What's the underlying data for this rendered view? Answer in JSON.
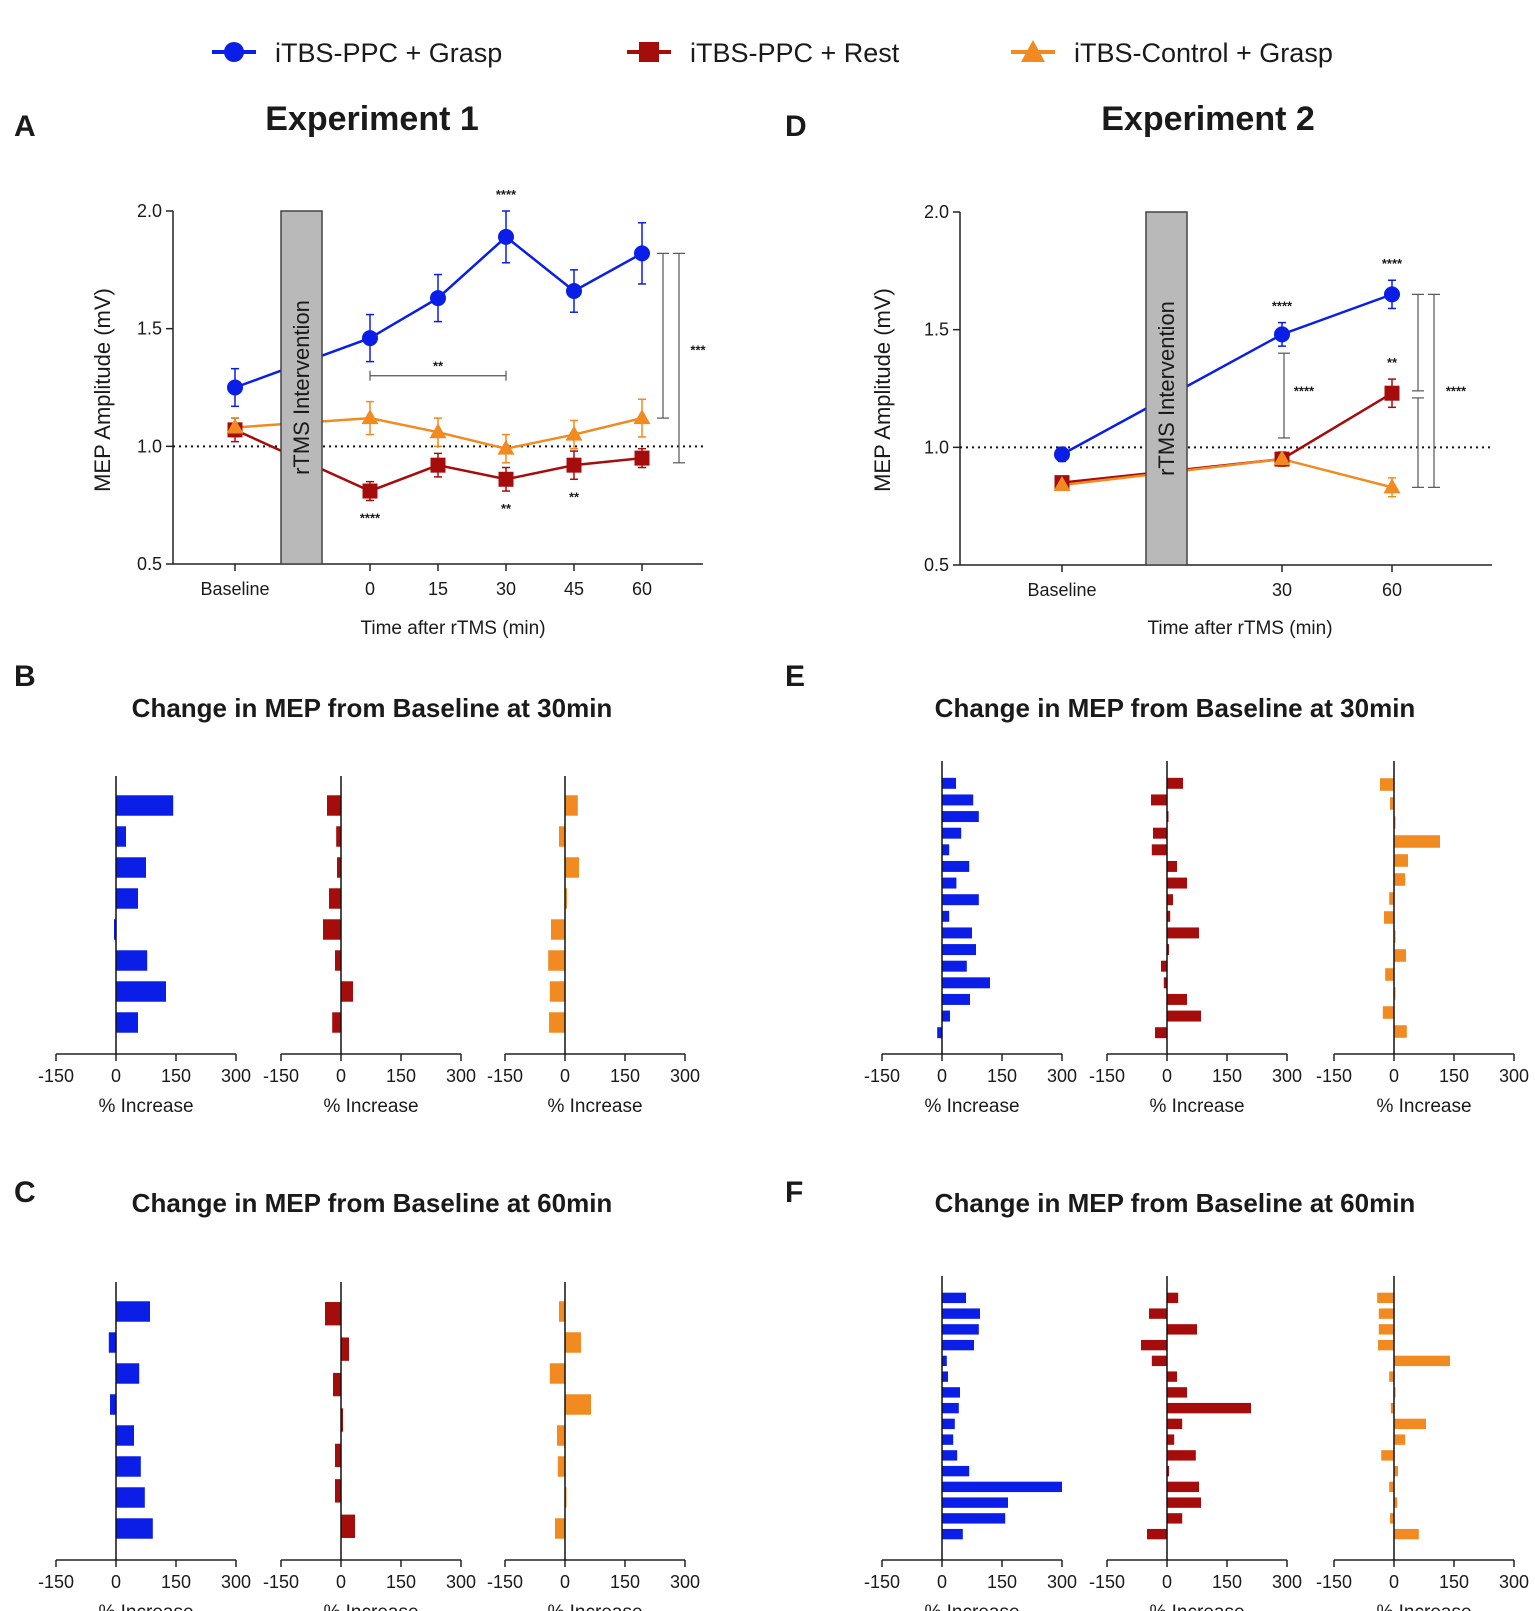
{
  "colors": {
    "grasp": "#0a1ee8",
    "rest": "#a50d0d",
    "control": "#f28a22",
    "intervention_fill": "#b9b9b9"
  },
  "legend": [
    {
      "key": "grasp",
      "label": "iTBS-PPC + Grasp",
      "marker": "circle"
    },
    {
      "key": "rest",
      "label": "iTBS-PPC + Rest",
      "marker": "square"
    },
    {
      "key": "control",
      "label": "iTBS-Control + Grasp",
      "marker": "triangle"
    }
  ],
  "panel_letters": {
    "A": "A",
    "B": "B",
    "C": "C",
    "D": "D",
    "E": "E",
    "F": "F"
  },
  "chart_data": [
    {
      "id": "A",
      "type": "line",
      "title": "Experiment 1",
      "xlabel": "Time after rTMS (min)",
      "ylabel": "MEP Amplitude (mV)",
      "ylim": [
        0.5,
        2.0
      ],
      "yticks": [
        "0.5",
        "1.0",
        "1.5",
        "2.0"
      ],
      "categories": [
        "Baseline",
        "0",
        "15",
        "30",
        "45",
        "60"
      ],
      "reference_line": 1.0,
      "intervention_label": "rTMS Intervention",
      "series": [
        {
          "key": "grasp",
          "name": "iTBS-PPC + Grasp",
          "values": [
            1.25,
            1.46,
            1.63,
            1.89,
            1.66,
            1.82
          ],
          "errors": [
            0.08,
            0.1,
            0.1,
            0.11,
            0.09,
            0.13
          ]
        },
        {
          "key": "rest",
          "name": "iTBS-PPC + Rest",
          "values": [
            1.07,
            0.81,
            0.92,
            0.86,
            0.92,
            0.95
          ],
          "errors": [
            0.05,
            0.04,
            0.05,
            0.05,
            0.06,
            0.04
          ]
        },
        {
          "key": "control",
          "name": "iTBS-Control + Grasp",
          "values": [
            1.08,
            1.12,
            1.06,
            0.99,
            1.05,
            1.12
          ],
          "errors": [
            0.04,
            0.07,
            0.06,
            0.06,
            0.06,
            0.08
          ]
        }
      ],
      "annotations": {
        "grasp_30": "****",
        "rest_0": "****",
        "rest_30": "**",
        "rest_45": "**",
        "bracket_0_30": "**",
        "bracket_60_a": "***"
      }
    },
    {
      "id": "D",
      "type": "line",
      "title": "Experiment 2",
      "xlabel": "Time after rTMS (min)",
      "ylabel": "MEP Amplitude (mV)",
      "ylim": [
        0.5,
        2.0
      ],
      "yticks": [
        "0.5",
        "1.0",
        "1.5",
        "2.0"
      ],
      "categories": [
        "Baseline",
        "30",
        "60"
      ],
      "reference_line": 1.0,
      "intervention_label": "rTMS Intervention",
      "series": [
        {
          "key": "grasp",
          "name": "iTBS-PPC + Grasp",
          "values": [
            0.97,
            1.48,
            1.65
          ],
          "errors": [
            0.03,
            0.05,
            0.06
          ]
        },
        {
          "key": "rest",
          "name": "iTBS-PPC + Rest",
          "values": [
            0.85,
            0.95,
            1.23
          ],
          "errors": [
            0.02,
            0.03,
            0.06
          ]
        },
        {
          "key": "control",
          "name": "iTBS-Control + Grasp",
          "values": [
            0.84,
            0.95,
            0.83
          ],
          "errors": [
            0.02,
            0.03,
            0.04
          ]
        }
      ],
      "annotations": {
        "grasp_30": "****",
        "grasp_60": "****",
        "rest_60": "**",
        "bracket_30": "****",
        "bracket_60": "****"
      }
    }
  ],
  "bar_panels": {
    "B": {
      "title": "Change in MEP from Baseline at 30min"
    },
    "C": {
      "title": "Change in MEP from Baseline at 60min"
    },
    "E": {
      "title": "Change in MEP from Baseline at 30min"
    },
    "F": {
      "title": "Change in MEP from Baseline at 60min"
    },
    "xticks": [
      "-150",
      "0",
      "150",
      "300"
    ],
    "xlabel": "% Increase",
    "type": "bar",
    "orientation": "horizontal",
    "xlim": [
      -150,
      300
    ],
    "values": {
      "B": {
        "grasp": [
          143,
          25,
          75,
          55,
          -5,
          78,
          125,
          55
        ],
        "rest": [
          -35,
          -12,
          -10,
          -30,
          -45,
          -15,
          30,
          -22
        ],
        "control": [
          32,
          -15,
          35,
          5,
          -35,
          -42,
          -38,
          -40
        ]
      },
      "C": {
        "grasp": [
          85,
          -18,
          58,
          -15,
          45,
          62,
          72,
          92
        ],
        "rest": [
          -40,
          20,
          -20,
          5,
          -15,
          -15,
          35
        ],
        "control": [
          -15,
          40,
          -38,
          65,
          -20,
          -18,
          0,
          -25
        ]
      },
      "E": {
        "grasp": [
          35,
          78,
          92,
          48,
          18,
          68,
          36,
          92,
          18,
          75,
          85,
          62,
          120,
          70,
          20,
          -12
        ],
        "rest": [
          40,
          -40,
          0,
          -35,
          -38,
          25,
          50,
          15,
          8,
          80,
          5,
          -15,
          -8,
          50,
          85,
          -30
        ],
        "control": [
          -35,
          -10,
          0,
          115,
          35,
          28,
          -12,
          -25,
          0,
          30,
          -22,
          0,
          -28,
          32
        ]
      },
      "F": {
        "grasp": [
          60,
          95,
          92,
          80,
          12,
          15,
          45,
          42,
          32,
          28,
          38,
          68,
          300,
          165,
          158,
          52
        ],
        "rest": [
          28,
          -45,
          75,
          -65,
          -38,
          25,
          50,
          210,
          38,
          18,
          72,
          5,
          80,
          85,
          38,
          -50
        ],
        "control": [
          -42,
          -38,
          -38,
          -40,
          140,
          -12,
          0,
          -8,
          80,
          28,
          -32,
          10,
          -12,
          8,
          -10,
          62
        ]
      }
    }
  }
}
